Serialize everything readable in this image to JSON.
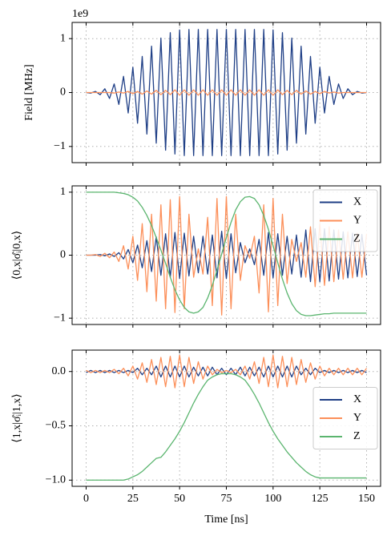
{
  "chart_data": [
    {
      "type": "line",
      "ylabel": "Field [MHz]",
      "offset_text": "1e9",
      "grid": true,
      "xticklabels": false,
      "xlim": [
        -7.5,
        157.5
      ],
      "xticks": [
        0,
        25,
        50,
        75,
        100,
        125,
        150
      ],
      "ylim": [
        -1.3,
        1.3
      ],
      "yticks": [
        {
          "value": -1,
          "label": "−1"
        },
        0,
        1
      ],
      "x": [
        0,
        2.5,
        5,
        7.5,
        10,
        12.5,
        15,
        17.5,
        20,
        22.5,
        25,
        27.5,
        30,
        32.5,
        35,
        37.5,
        40,
        42.5,
        45,
        47.5,
        50,
        52.5,
        55,
        57.5,
        60,
        62.5,
        65,
        67.5,
        70,
        72.5,
        75,
        77.5,
        80,
        82.5,
        85,
        87.5,
        90,
        92.5,
        95,
        97.5,
        100,
        102.5,
        105,
        107.5,
        110,
        112.5,
        115,
        117.5,
        120,
        122.5,
        125,
        127.5,
        130,
        132.5,
        135,
        137.5,
        140,
        142.5,
        145,
        147.5,
        150
      ],
      "series": [
        {
          "color": "#1f3f86",
          "values": [
            0,
            -0.01,
            0.02,
            -0.04,
            0.07,
            -0.11,
            0.16,
            -0.22,
            0.3,
            -0.38,
            0.47,
            -0.57,
            0.67,
            -0.77,
            0.86,
            -0.94,
            1.01,
            -1.07,
            1.11,
            -1.14,
            1.16,
            -1.17,
            1.17,
            -1.17,
            1.17,
            -1.17,
            1.17,
            -1.17,
            1.17,
            -1.17,
            1.17,
            -1.17,
            1.17,
            -1.17,
            1.17,
            -1.17,
            1.17,
            -1.17,
            1.17,
            -1.17,
            1.16,
            -1.14,
            1.11,
            -1.07,
            1.01,
            -0.94,
            0.86,
            -0.77,
            0.67,
            -0.57,
            0.47,
            -0.38,
            0.3,
            -0.22,
            0.16,
            -0.11,
            0.07,
            -0.04,
            0.02,
            -0.01,
            0
          ]
        },
        {
          "color": "#fc8f59",
          "values": [
            0,
            0,
            0,
            0,
            0,
            0,
            -0.01,
            0.01,
            -0.01,
            0.02,
            -0.02,
            0.02,
            -0.03,
            0.03,
            -0.03,
            0.04,
            -0.04,
            0.04,
            -0.04,
            0.05,
            -0.05,
            0.05,
            -0.05,
            0.05,
            -0.05,
            0.05,
            -0.05,
            0.05,
            -0.05,
            0.05,
            -0.05,
            0.05,
            -0.05,
            0.05,
            -0.05,
            0.05,
            -0.05,
            0.05,
            -0.05,
            0.05,
            -0.05,
            0.05,
            -0.04,
            0.04,
            -0.04,
            0.04,
            -0.03,
            0.03,
            -0.03,
            0.02,
            -0.02,
            0.02,
            -0.01,
            0.01,
            -0.01,
            0,
            0,
            0,
            0,
            0,
            0
          ]
        }
      ]
    },
    {
      "type": "line",
      "ylabel": "⟨0,x|σ̂ᵢ|0,x⟩",
      "grid": true,
      "xticklabels": false,
      "legend": "upper right",
      "xlim": [
        -7.5,
        157.5
      ],
      "xticks": [
        0,
        25,
        50,
        75,
        100,
        125,
        150
      ],
      "ylim": [
        -1.1,
        1.1
      ],
      "yticks": [
        {
          "value": -1,
          "label": "−1"
        },
        0,
        1
      ],
      "x": [
        0,
        2.5,
        5,
        7.5,
        10,
        12.5,
        15,
        17.5,
        20,
        22.5,
        25,
        27.5,
        30,
        32.5,
        35,
        37.5,
        40,
        42.5,
        45,
        47.5,
        50,
        52.5,
        55,
        57.5,
        60,
        62.5,
        65,
        67.5,
        70,
        72.5,
        75,
        77.5,
        80,
        82.5,
        85,
        87.5,
        90,
        92.5,
        95,
        97.5,
        100,
        102.5,
        105,
        107.5,
        110,
        112.5,
        115,
        117.5,
        120,
        122.5,
        125,
        127.5,
        130,
        132.5,
        135,
        137.5,
        140,
        142.5,
        145,
        147.5,
        150
      ],
      "series": [
        {
          "name": "X",
          "color": "#1f3f86",
          "values": [
            0,
            0,
            0,
            0.01,
            -0.01,
            0.02,
            -0.02,
            0.04,
            -0.06,
            0.09,
            -0.12,
            0.16,
            -0.2,
            0.23,
            -0.26,
            0.29,
            -0.32,
            0.34,
            -0.35,
            0.36,
            -0.37,
            0.35,
            -0.33,
            0.3,
            -0.28,
            0.3,
            -0.3,
            0.32,
            -0.36,
            0.38,
            -0.37,
            0.34,
            -0.28,
            0.2,
            -0.12,
            0.1,
            -0.15,
            0.25,
            -0.32,
            0.36,
            -0.36,
            0.34,
            -0.32,
            0.3,
            -0.3,
            0.32,
            -0.35,
            0.4,
            -0.42,
            0.42,
            -0.42,
            0.42,
            -0.41,
            0.4,
            -0.38,
            0.37,
            -0.36,
            0.35,
            -0.34,
            0.33,
            -0.32
          ]
        },
        {
          "name": "Y",
          "color": "#fc8f59",
          "values": [
            0,
            0,
            0.01,
            -0.02,
            0.03,
            -0.04,
            0.05,
            -0.1,
            0.15,
            -0.22,
            0.3,
            -0.4,
            0.5,
            -0.58,
            0.65,
            -0.73,
            0.8,
            -0.85,
            0.88,
            -0.91,
            0.93,
            -0.85,
            0.65,
            -0.35,
            0.1,
            -0.3,
            0.6,
            -0.8,
            0.9,
            -0.95,
            0.93,
            -0.85,
            0.65,
            -0.4,
            0.15,
            -0.05,
            0.3,
            -0.6,
            0.8,
            -0.9,
            0.9,
            -0.8,
            0.65,
            -0.45,
            0.25,
            -0.1,
            0.2,
            -0.35,
            0.45,
            -0.5,
            0.5,
            -0.48,
            0.45,
            -0.42,
            0.4,
            -0.38,
            0.37,
            -0.36,
            0.35,
            -0.35,
            0.34
          ]
        },
        {
          "name": "Z",
          "color": "#5bb56f",
          "values": [
            1,
            1,
            1,
            1,
            1,
            1,
            1,
            0.99,
            0.98,
            0.96,
            0.92,
            0.86,
            0.76,
            0.63,
            0.47,
            0.28,
            0.08,
            -0.13,
            -0.35,
            -0.55,
            -0.71,
            -0.83,
            -0.9,
            -0.92,
            -0.9,
            -0.83,
            -0.68,
            -0.48,
            -0.24,
            0.02,
            0.28,
            0.52,
            0.72,
            0.85,
            0.92,
            0.93,
            0.9,
            0.8,
            0.63,
            0.41,
            0.15,
            -0.12,
            -0.38,
            -0.6,
            -0.77,
            -0.88,
            -0.94,
            -0.96,
            -0.96,
            -0.95,
            -0.94,
            -0.93,
            -0.93,
            -0.92,
            -0.92,
            -0.92,
            -0.92,
            -0.92,
            -0.92,
            -0.92,
            -0.92
          ]
        }
      ]
    },
    {
      "type": "line",
      "ylabel": "⟨1,x|σ̂ᵢ|1,x⟩",
      "xlabel": "Time [ns]",
      "grid": true,
      "xticklabels": true,
      "legend": "center right",
      "xlim": [
        -7.5,
        157.5
      ],
      "xticks": [
        0,
        25,
        50,
        75,
        100,
        125,
        150
      ],
      "ylim": [
        -1.057,
        0.197
      ],
      "yticks": [
        {
          "value": -1,
          "label": "−1.0"
        },
        {
          "value": -0.5,
          "label": "−0.5"
        },
        {
          "value": 0,
          "label": "0.0"
        }
      ],
      "x": [
        0,
        2.5,
        5,
        7.5,
        10,
        12.5,
        15,
        17.5,
        20,
        22.5,
        25,
        27.5,
        30,
        32.5,
        35,
        37.5,
        40,
        42.5,
        45,
        47.5,
        50,
        52.5,
        55,
        57.5,
        60,
        62.5,
        65,
        67.5,
        70,
        72.5,
        75,
        77.5,
        80,
        82.5,
        85,
        87.5,
        90,
        92.5,
        95,
        97.5,
        100,
        102.5,
        105,
        107.5,
        110,
        112.5,
        115,
        117.5,
        120,
        122.5,
        125,
        127.5,
        130,
        132.5,
        135,
        137.5,
        140,
        142.5,
        145,
        147.5,
        150
      ],
      "series": [
        {
          "name": "X",
          "color": "#1f3f86",
          "values": [
            -0.01,
            0.01,
            -0.01,
            0.01,
            -0.01,
            0.01,
            -0.01,
            0.01,
            -0.01,
            0.01,
            -0.01,
            0.03,
            -0.03,
            0.03,
            -0.03,
            0.05,
            -0.05,
            0.05,
            -0.05,
            0.05,
            -0.05,
            0.05,
            -0.05,
            0.04,
            -0.04,
            0.04,
            -0.04,
            0.04,
            -0.03,
            0.03,
            -0.03,
            0.03,
            -0.03,
            0.04,
            -0.04,
            0.04,
            -0.04,
            0.04,
            -0.05,
            0.05,
            -0.05,
            0.05,
            -0.05,
            0.05,
            -0.05,
            0.05,
            -0.03,
            0.03,
            -0.03,
            0.03,
            -0.01,
            0.01,
            -0.01,
            0.01,
            -0.01,
            0.01,
            -0.01,
            0.01,
            -0.01,
            0.01,
            -0.01
          ]
        },
        {
          "name": "Y",
          "color": "#fc8f59",
          "values": [
            0.01,
            -0.01,
            0.01,
            -0.01,
            0.01,
            -0.01,
            0.02,
            -0.02,
            0.03,
            -0.04,
            0.05,
            -0.07,
            0.08,
            -0.1,
            0.11,
            -0.12,
            0.13,
            -0.14,
            0.14,
            -0.15,
            0.15,
            -0.14,
            0.13,
            -0.11,
            0.09,
            -0.07,
            0.05,
            -0.03,
            0.02,
            -0.01,
            0.01,
            -0.01,
            0.02,
            -0.03,
            0.05,
            -0.07,
            0.09,
            -0.11,
            0.13,
            -0.14,
            0.15,
            -0.15,
            0.14,
            -0.14,
            0.13,
            -0.12,
            0.11,
            -0.1,
            0.08,
            -0.07,
            0.05,
            -0.04,
            0.03,
            -0.03,
            0.03,
            -0.03,
            0.03,
            -0.03,
            0.03,
            -0.03,
            0.03
          ]
        },
        {
          "name": "Z",
          "color": "#5bb56f",
          "values": [
            -1,
            -1,
            -1,
            -1,
            -1,
            -1,
            -1,
            -1,
            -1,
            -0.99,
            -0.97,
            -0.95,
            -0.92,
            -0.88,
            -0.84,
            -0.8,
            -0.79,
            -0.74,
            -0.68,
            -0.62,
            -0.55,
            -0.47,
            -0.38,
            -0.29,
            -0.21,
            -0.14,
            -0.08,
            -0.05,
            -0.03,
            -0.02,
            -0.02,
            -0.02,
            -0.03,
            -0.05,
            -0.08,
            -0.14,
            -0.21,
            -0.29,
            -0.38,
            -0.47,
            -0.55,
            -0.62,
            -0.68,
            -0.74,
            -0.79,
            -0.84,
            -0.88,
            -0.92,
            -0.95,
            -0.97,
            -0.98,
            -0.98,
            -0.98,
            -0.98,
            -0.98,
            -0.98,
            -0.98,
            -0.98,
            -0.98,
            -0.98,
            -0.98
          ]
        }
      ]
    }
  ]
}
